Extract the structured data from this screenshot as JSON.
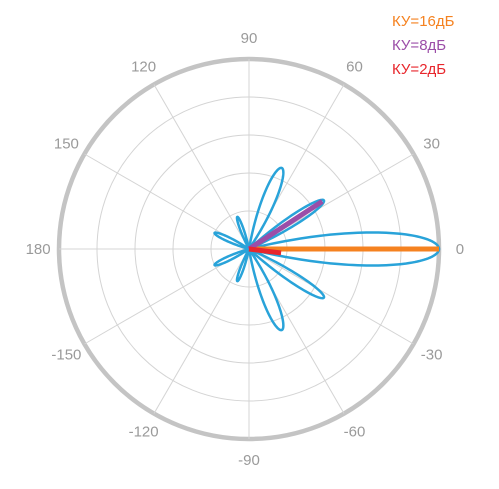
{
  "chart_data": {
    "type": "polar",
    "title": "",
    "radial_range": [
      0,
      1
    ],
    "grid": true,
    "angle_ticks": [
      {
        "deg": 0,
        "label": "0"
      },
      {
        "deg": 30,
        "label": "30"
      },
      {
        "deg": 60,
        "label": "60"
      },
      {
        "deg": 90,
        "label": "90"
      },
      {
        "deg": 120,
        "label": "120"
      },
      {
        "deg": 150,
        "label": "150"
      },
      {
        "deg": 180,
        "label": "180"
      },
      {
        "deg": -150,
        "label": "-150"
      },
      {
        "deg": -120,
        "label": "-120"
      },
      {
        "deg": -90,
        "label": "-90"
      },
      {
        "deg": -60,
        "label": "-60"
      },
      {
        "deg": -30,
        "label": "-30"
      }
    ],
    "rings": [
      0.2,
      0.4,
      0.6,
      0.8,
      1.0
    ],
    "pattern": {
      "color": "#29a3d9",
      "lobes": [
        {
          "center_deg": 0,
          "halfwidth_deg": 14,
          "peak": 1.0
        },
        {
          "center_deg": 33,
          "halfwidth_deg": 9,
          "peak": 0.47
        },
        {
          "center_deg": -33,
          "halfwidth_deg": 9,
          "peak": 0.47
        },
        {
          "center_deg": 68,
          "halfwidth_deg": 12,
          "peak": 0.46
        },
        {
          "center_deg": -68,
          "halfwidth_deg": 12,
          "peak": 0.46
        },
        {
          "center_deg": 110,
          "halfwidth_deg": 8,
          "peak": 0.18
        },
        {
          "center_deg": 155,
          "halfwidth_deg": 9,
          "peak": 0.2
        },
        {
          "center_deg": -155,
          "halfwidth_deg": 9,
          "peak": 0.2
        },
        {
          "center_deg": -110,
          "halfwidth_deg": 8,
          "peak": 0.18
        }
      ]
    },
    "series": [
      {
        "name": "КУ=16дБ",
        "color": "#f58220",
        "angle_deg": 0,
        "length": 1.0
      },
      {
        "name": "КУ=8дБ",
        "color": "#9b4ea8",
        "angle_deg": 33,
        "length": 0.46
      },
      {
        "name": "КУ=2дБ",
        "color": "#e8262c",
        "angle_deg": -7,
        "length": 0.17
      }
    ],
    "legend_position": "top-right",
    "colors": {
      "outer_circle": "#c4c4c4",
      "grid": "#d4d4d4",
      "labels": "#9a9a9a"
    }
  }
}
